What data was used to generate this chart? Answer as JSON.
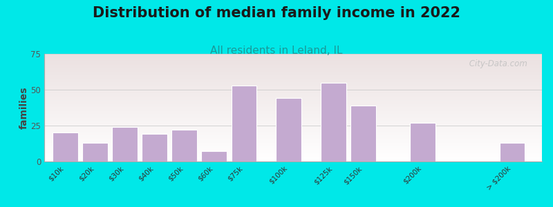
{
  "title": "Distribution of median family income in 2022",
  "subtitle": "All residents in Leland, IL",
  "ylabel": "families",
  "categories": [
    "$10k",
    "$20k",
    "$30k",
    "$40k",
    "$50k",
    "$60k",
    "$75k",
    "$100k",
    "$125k",
    "$150k",
    "$200k",
    "> $200k"
  ],
  "values": [
    20,
    13,
    24,
    19,
    22,
    7,
    53,
    44,
    55,
    39,
    27,
    13
  ],
  "x_positions": [
    0,
    1,
    2,
    3,
    4,
    5,
    6,
    7.5,
    9,
    10,
    12,
    15
  ],
  "bar_color": "#c4aad0",
  "bar_edge_color": "#ffffff",
  "background_outer": "#00e8e8",
  "ylim": [
    0,
    75
  ],
  "yticks": [
    0,
    25,
    50,
    75
  ],
  "title_fontsize": 15,
  "subtitle_fontsize": 11,
  "ylabel_fontsize": 10,
  "watermark_text": " City-Data.com"
}
